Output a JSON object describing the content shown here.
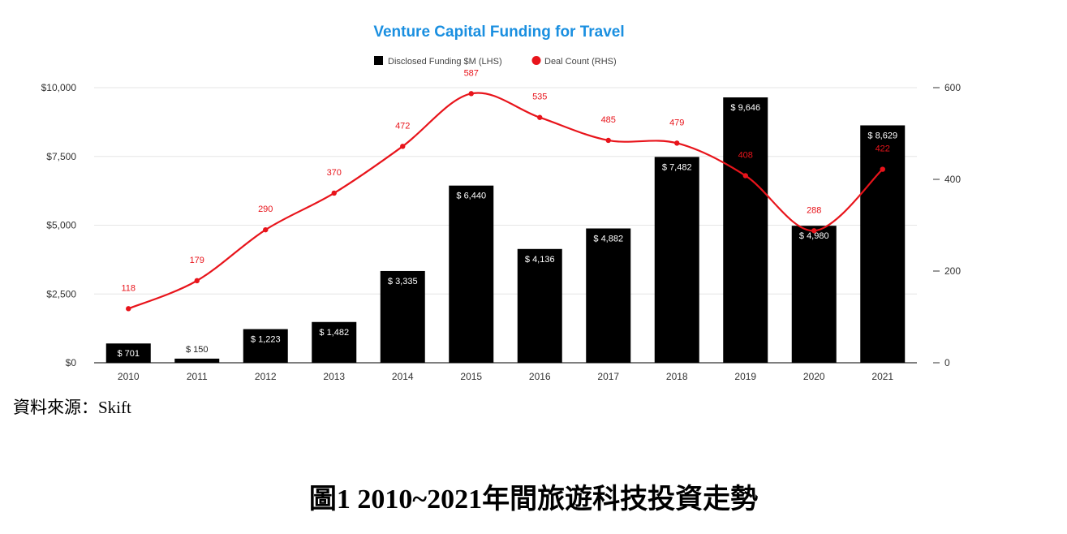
{
  "chart_data": {
    "type": "bar",
    "title": "Venture Capital Funding for Travel",
    "title_color": "#1a8fe0",
    "categories": [
      "2010",
      "2011",
      "2012",
      "2013",
      "2014",
      "2015",
      "2016",
      "2017",
      "2018",
      "2019",
      "2020",
      "2021"
    ],
    "series": [
      {
        "name": "Disclosed Funding $M (LHS)",
        "type": "bar",
        "axis": "left",
        "color": "#000000",
        "values": [
          701,
          150,
          1223,
          1482,
          3335,
          6440,
          4136,
          4882,
          7482,
          9646,
          4980,
          8629
        ],
        "labels": [
          "$ 701",
          "$ 150",
          "$ 1,223",
          "$ 1,482",
          "$ 3,335",
          "$ 6,440",
          "$ 4,136",
          "$ 4,882",
          "$ 7,482",
          "$ 9,646",
          "$ 4,980",
          "$ 8,629"
        ]
      },
      {
        "name": "Deal Count (RHS)",
        "type": "line",
        "axis": "right",
        "color": "#e8141b",
        "values": [
          118,
          179,
          290,
          370,
          472,
          587,
          535,
          485,
          479,
          408,
          288,
          422
        ],
        "labels": [
          "118",
          "179",
          "290",
          "370",
          "472",
          "587",
          "535",
          "485",
          "479",
          "408",
          "288",
          "422"
        ]
      }
    ],
    "y_left": {
      "range": [
        0,
        10000
      ],
      "ticks": [
        0,
        2500,
        5000,
        7500,
        10000
      ],
      "tick_labels": [
        "$0",
        "$2,500",
        "$5,000",
        "$7,500",
        "$10,000"
      ]
    },
    "y_right": {
      "range": [
        0,
        600
      ],
      "ticks": [
        0,
        200,
        400,
        600
      ],
      "tick_labels": [
        "0",
        "200",
        "400",
        "600"
      ]
    },
    "grid": true,
    "legend_position": "top-center"
  },
  "source_note": "資料來源：Skift",
  "caption": "圖1 2010~2021年間旅遊科技投資走勢"
}
